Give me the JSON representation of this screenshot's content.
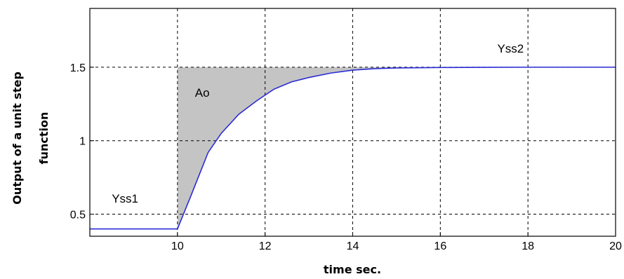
{
  "chart_data": {
    "type": "line",
    "title": "",
    "xlabel": "time sec.",
    "ylabel_lines": [
      "Output of a unit step",
      "function"
    ],
    "xlim": [
      8,
      20
    ],
    "ylim": [
      0.35,
      1.9
    ],
    "xticks": [
      10,
      12,
      14,
      16,
      18,
      20
    ],
    "yticks": [
      0.5,
      1,
      1.5
    ],
    "xtick_labels": [
      "10",
      "12",
      "14",
      "16",
      "18",
      "20"
    ],
    "ytick_labels": [
      "0.5",
      "1",
      "1.5"
    ],
    "grid": true,
    "grid_style": "dashed",
    "series": [
      {
        "color": "#2b2bd6",
        "x": [
          8,
          10,
          10.3,
          10.7,
          11.0,
          11.4,
          11.8,
          12.2,
          12.6,
          13.0,
          13.5,
          14.0,
          14.5,
          15.0,
          16.0,
          17.0,
          18.0,
          19.0,
          20.0
        ],
        "y": [
          0.4,
          0.4,
          0.62,
          0.92,
          1.05,
          1.18,
          1.27,
          1.35,
          1.4,
          1.43,
          1.46,
          1.48,
          1.49,
          1.495,
          1.498,
          1.499,
          1.5,
          1.5,
          1.5
        ]
      }
    ],
    "shaded_region": {
      "label": "Ao",
      "color": "#c4c4c4",
      "from_x": 10,
      "upper_y": 1.5
    },
    "annotations": [
      {
        "text": "Yss1",
        "x": 8.5,
        "y": 0.58
      },
      {
        "text": "Ao",
        "x": 10.4,
        "y": 1.3
      },
      {
        "text": "Yss2",
        "x": 17.3,
        "y": 1.6
      }
    ]
  }
}
